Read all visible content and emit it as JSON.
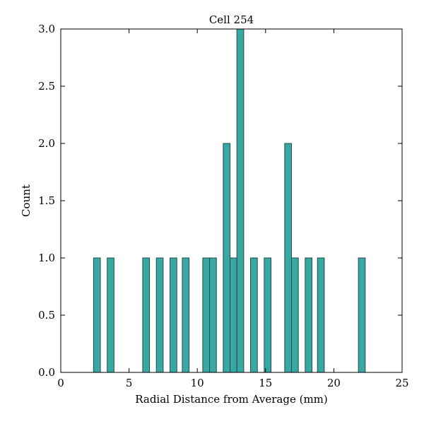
{
  "chart_data": {
    "type": "bar",
    "title": "Cell 254",
    "xlabel": "Radial Distance from Average (mm)",
    "ylabel": "Count",
    "xlim": [
      0,
      25
    ],
    "ylim": [
      0,
      3
    ],
    "xticks": [
      0,
      5,
      10,
      15,
      20,
      25
    ],
    "yticks": [
      0,
      0.5,
      1,
      1.5,
      2,
      2.5,
      3
    ],
    "xtick_labels": [
      "0",
      "5",
      "10",
      "15",
      "20",
      "25"
    ],
    "ytick_labels": [
      "0.0",
      "0.5",
      "1.0",
      "1.5",
      "2.0",
      "2.5",
      "3.0"
    ],
    "grid": false,
    "bar_color": "#3aa8a2",
    "edge_color": "#1f4d4a",
    "bins": [
      {
        "x0": 2.4,
        "x1": 2.9,
        "count": 1
      },
      {
        "x0": 3.4,
        "x1": 3.9,
        "count": 1
      },
      {
        "x0": 6.0,
        "x1": 6.5,
        "count": 1
      },
      {
        "x0": 7.0,
        "x1": 7.5,
        "count": 1
      },
      {
        "x0": 8.0,
        "x1": 8.5,
        "count": 1
      },
      {
        "x0": 8.9,
        "x1": 9.4,
        "count": 1
      },
      {
        "x0": 10.4,
        "x1": 10.9,
        "count": 1
      },
      {
        "x0": 10.9,
        "x1": 11.4,
        "count": 1
      },
      {
        "x0": 11.9,
        "x1": 12.4,
        "count": 2
      },
      {
        "x0": 12.4,
        "x1": 12.9,
        "count": 1
      },
      {
        "x0": 12.9,
        "x1": 13.4,
        "count": 3
      },
      {
        "x0": 13.9,
        "x1": 14.4,
        "count": 1
      },
      {
        "x0": 14.9,
        "x1": 15.4,
        "count": 1
      },
      {
        "x0": 16.4,
        "x1": 16.9,
        "count": 2
      },
      {
        "x0": 16.9,
        "x1": 17.4,
        "count": 1
      },
      {
        "x0": 17.9,
        "x1": 18.4,
        "count": 1
      },
      {
        "x0": 18.8,
        "x1": 19.3,
        "count": 1
      },
      {
        "x0": 21.8,
        "x1": 22.3,
        "count": 1
      }
    ]
  }
}
